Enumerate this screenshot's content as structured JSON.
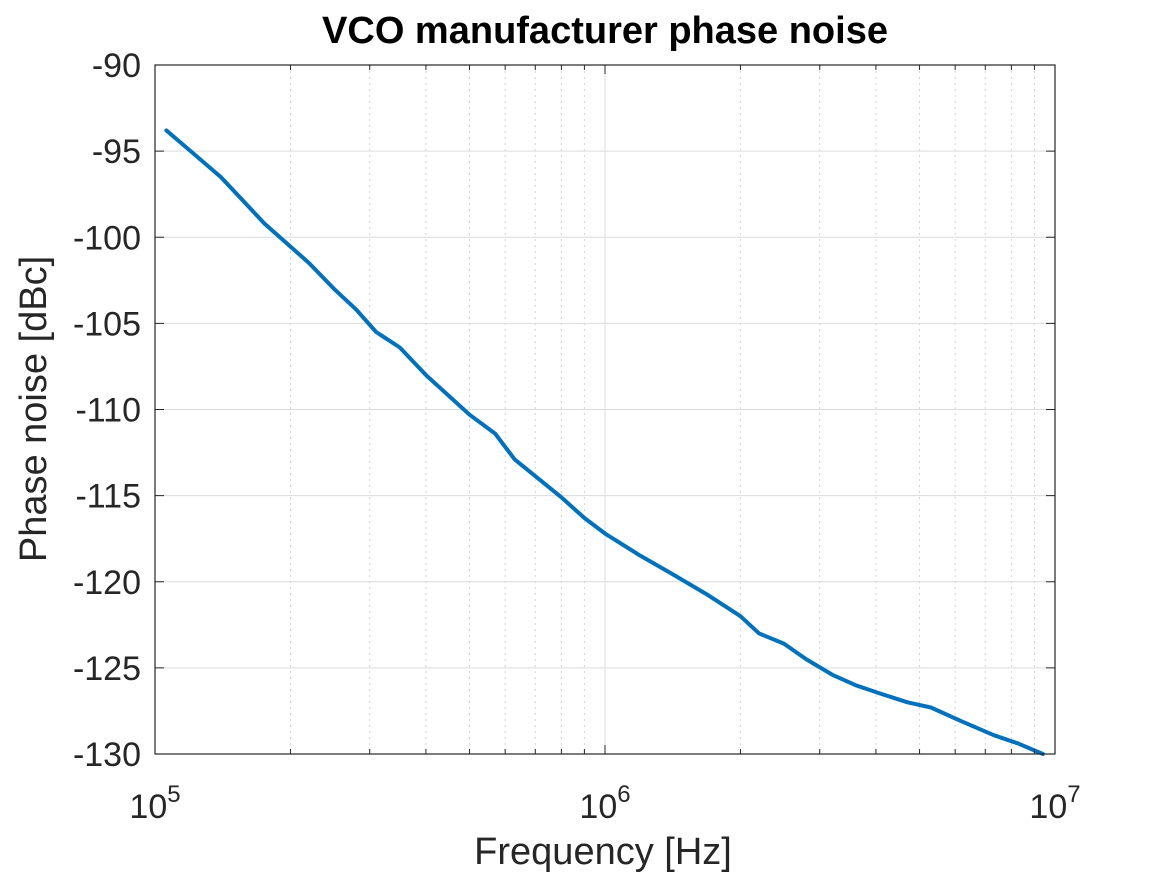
{
  "chart_data": {
    "type": "line",
    "title": "VCO manufacturer phase noise",
    "xlabel": "Frequency [Hz]",
    "ylabel": "Phase noise [dBc]",
    "xscale": "log",
    "xlim": [
      100000,
      10000000
    ],
    "ylim": [
      -130,
      -90
    ],
    "x_ticks": [
      {
        "base": "10",
        "exp": "5"
      },
      {
        "base": "10",
        "exp": "6"
      },
      {
        "base": "10",
        "exp": "7"
      }
    ],
    "y_ticks": [
      "-90",
      "-95",
      "-100",
      "-105",
      "-110",
      "-115",
      "-120",
      "-125",
      "-130"
    ],
    "grid": true,
    "minor_grid": true,
    "series_color": "#0072BD",
    "series": [
      {
        "x": [
          106000,
          120000,
          140000,
          175000,
          220000,
          250000,
          280000,
          310000,
          350000,
          400000,
          500000,
          570000,
          630000,
          800000,
          900000,
          1000000,
          1200000,
          1400000,
          1700000,
          2000000,
          2200000,
          2500000,
          2800000,
          3200000,
          3600000,
          4100000,
          4700000,
          5300000,
          6200000,
          7300000,
          8300000,
          9400000
        ],
        "y": [
          -93.8,
          -95.0,
          -96.5,
          -99.2,
          -101.5,
          -103.0,
          -104.2,
          -105.5,
          -106.4,
          -108.0,
          -110.3,
          -111.4,
          -112.9,
          -115.1,
          -116.3,
          -117.2,
          -118.5,
          -119.5,
          -120.8,
          -122.0,
          -123.0,
          -123.6,
          -124.5,
          -125.4,
          -126.0,
          -126.5,
          -127.0,
          -127.3,
          -128.1,
          -128.9,
          -129.4,
          -130.0
        ]
      }
    ]
  }
}
